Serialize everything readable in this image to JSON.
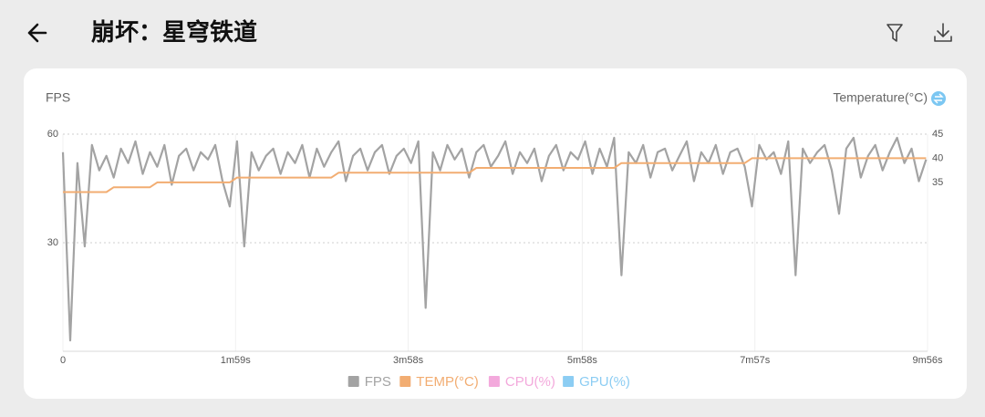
{
  "header": {
    "title": "崩坏：星穹铁道"
  },
  "chart_data": {
    "type": "line",
    "ylabel": "FPS",
    "y2label": "Temperature(°C)",
    "x": [
      0,
      5,
      10,
      15,
      20,
      25,
      30,
      35,
      40,
      45,
      50,
      55,
      60,
      65,
      70,
      75,
      80,
      85,
      90,
      95,
      100,
      105,
      110,
      115,
      120,
      125,
      130,
      135,
      140,
      145,
      150,
      155,
      160,
      165,
      170,
      175,
      180,
      185,
      190,
      195,
      200,
      205,
      210,
      215,
      220,
      225,
      230,
      235,
      240,
      245,
      250,
      255,
      260,
      265,
      270,
      275,
      280,
      285,
      290,
      295,
      300,
      305,
      310,
      315,
      320,
      325,
      330,
      335,
      340,
      345,
      350,
      355,
      360,
      365,
      370,
      375,
      380,
      385,
      390,
      395,
      400,
      405,
      410,
      415,
      420,
      425,
      430,
      435,
      440,
      445,
      450,
      455,
      460,
      465,
      470,
      475,
      480,
      485,
      490,
      495,
      500,
      505,
      510,
      515,
      520,
      525,
      530,
      535,
      540,
      545,
      550,
      555,
      560,
      565,
      570,
      575,
      580,
      585,
      590,
      595
    ],
    "xlim": [
      0,
      596
    ],
    "xticks": [
      0,
      {
        "value": 119,
        "label": "1m59s"
      },
      {
        "value": 238,
        "label": "3m58s"
      },
      {
        "value": 358,
        "label": "5m58s"
      },
      {
        "value": 477,
        "label": "7m57s"
      },
      {
        "value": 596,
        "label": "9m56s"
      }
    ],
    "ylim": [
      0,
      60
    ],
    "yticks": [
      60,
      30
    ],
    "y2lim": [
      0,
      45
    ],
    "y2ticks": [
      45,
      40,
      35
    ],
    "grid": true,
    "series": [
      {
        "name": "FPS",
        "color": "#a3a3a3",
        "values": [
          55,
          3,
          52,
          29,
          57,
          50,
          54,
          48,
          56,
          52,
          58,
          49,
          55,
          51,
          57,
          46,
          54,
          56,
          50,
          55,
          53,
          57,
          47,
          40,
          58,
          29,
          55,
          50,
          54,
          56,
          49,
          55,
          52,
          57,
          48,
          56,
          51,
          55,
          58,
          47,
          54,
          56,
          50,
          55,
          57,
          49,
          54,
          56,
          52,
          58,
          12,
          55,
          50,
          57,
          53,
          56,
          48,
          55,
          57,
          51,
          54,
          58,
          49,
          55,
          52,
          56,
          47,
          54,
          57,
          50,
          55,
          53,
          58,
          49,
          56,
          51,
          59,
          21,
          55,
          52,
          57,
          48,
          55,
          56,
          50,
          54,
          58,
          47,
          55,
          52,
          57,
          49,
          55,
          56,
          51,
          40,
          57,
          53,
          55,
          49,
          58,
          21,
          56,
          52,
          55,
          57,
          50,
          38,
          56,
          59,
          48,
          54,
          57,
          50,
          55,
          59,
          52,
          56,
          47,
          53
        ]
      },
      {
        "name": "TEMP(°C)",
        "color": "#f2ad72",
        "axis": "y2",
        "values": [
          33,
          33,
          33,
          33,
          33,
          33,
          33,
          34,
          34,
          34,
          34,
          34,
          34,
          35,
          35,
          35,
          35,
          35,
          35,
          35,
          35,
          35,
          35,
          35,
          36,
          36,
          36,
          36,
          36,
          36,
          36,
          36,
          36,
          36,
          36,
          36,
          36,
          36,
          37,
          37,
          37,
          37,
          37,
          37,
          37,
          37,
          37,
          37,
          37,
          37,
          37,
          37,
          37,
          37,
          37,
          37,
          37,
          38,
          38,
          38,
          38,
          38,
          38,
          38,
          38,
          38,
          38,
          38,
          38,
          38,
          38,
          38,
          38,
          38,
          38,
          38,
          38,
          39,
          39,
          39,
          39,
          39,
          39,
          39,
          39,
          39,
          39,
          39,
          39,
          39,
          39,
          39,
          39,
          39,
          39,
          40,
          40,
          40,
          40,
          40,
          40,
          40,
          40,
          40,
          40,
          40,
          40,
          40,
          40,
          40,
          40,
          40,
          40,
          40,
          40,
          40,
          40,
          40,
          40,
          40
        ]
      },
      {
        "name": "CPU(%)",
        "color": "#f3a9dc",
        "values": [
          null,
          null,
          null,
          null,
          null,
          null,
          null,
          null,
          null,
          null,
          null,
          null,
          null,
          null,
          null,
          null,
          null,
          null,
          null,
          null,
          null,
          null,
          null,
          null,
          null,
          null,
          null,
          null,
          null,
          null,
          null,
          null,
          null,
          null,
          null,
          null,
          null,
          null,
          null,
          null,
          null,
          null,
          null,
          null,
          null,
          null,
          null,
          null,
          null,
          null,
          null,
          null,
          null,
          null,
          null,
          null,
          null,
          null,
          null,
          null,
          null,
          null,
          null,
          null,
          null,
          null,
          null,
          null,
          null,
          null,
          null,
          null,
          null,
          null,
          null,
          null,
          null,
          null,
          null,
          null,
          null,
          null,
          null,
          null,
          null,
          null,
          null,
          null,
          null,
          null,
          null,
          null,
          null,
          null,
          null,
          null,
          null,
          null,
          null,
          null,
          null,
          null,
          null,
          null,
          null,
          null,
          null,
          null,
          null,
          null,
          null,
          null,
          null,
          null,
          null,
          null,
          null,
          null,
          null,
          null
        ]
      },
      {
        "name": "GPU(%)",
        "color": "#8ccdf3",
        "values": [
          null,
          null,
          null,
          null,
          null,
          null,
          null,
          null,
          null,
          null,
          null,
          null,
          null,
          null,
          null,
          null,
          null,
          null,
          null,
          null,
          null,
          null,
          null,
          null,
          null,
          null,
          null,
          null,
          null,
          null,
          null,
          null,
          null,
          null,
          null,
          null,
          null,
          null,
          null,
          null,
          null,
          null,
          null,
          null,
          null,
          null,
          null,
          null,
          null,
          null,
          null,
          null,
          null,
          null,
          null,
          null,
          null,
          null,
          null,
          null,
          null,
          null,
          null,
          null,
          null,
          null,
          null,
          null,
          null,
          null,
          null,
          null,
          null,
          null,
          null,
          null,
          null,
          null,
          null,
          null,
          null,
          null,
          null,
          null,
          null,
          null,
          null,
          null,
          null,
          null,
          null,
          null,
          null,
          null,
          null,
          null,
          null,
          null,
          null,
          null,
          null,
          null,
          null,
          null,
          null,
          null,
          null,
          null,
          null,
          null,
          null,
          null,
          null,
          null,
          null,
          null,
          null,
          null,
          null,
          null
        ]
      }
    ]
  }
}
